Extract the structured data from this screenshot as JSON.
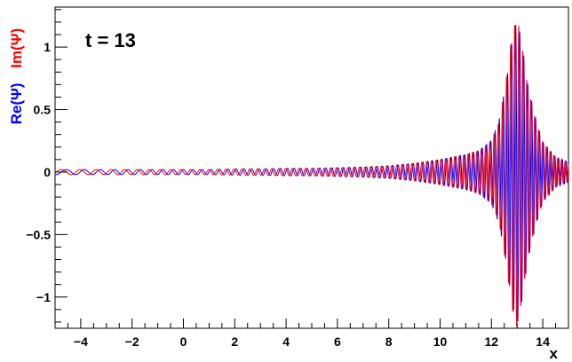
{
  "chart_data": {
    "type": "line",
    "annotation": "t = 13",
    "xlabel": "x",
    "ylabel_parts": [
      {
        "text": "Re(Ψ)",
        "color": "#0000ff"
      },
      {
        "text": "Im(Ψ)",
        "color": "#ff0000"
      }
    ],
    "xlim": [
      -5,
      15
    ],
    "ylim": [
      -1.25,
      1.32
    ],
    "x_ticks": [
      -4,
      -2,
      0,
      2,
      4,
      6,
      8,
      10,
      12,
      14
    ],
    "x_tick_labels": [
      "−4",
      "−2",
      "0",
      "2",
      "4",
      "6",
      "8",
      "10",
      "12",
      "14"
    ],
    "y_ticks": [
      -1,
      -0.5,
      0,
      0.5,
      1
    ],
    "y_tick_labels": [
      "−1",
      "−0.5",
      "0",
      "0.5",
      "1"
    ],
    "grid": false,
    "frame": true,
    "series": [
      {
        "name": "Re(Ψ)",
        "color": "#0000ff",
        "x": [
          -5,
          -4,
          -3,
          -2,
          -1,
          0,
          1,
          2,
          3,
          4,
          5,
          6,
          7,
          8,
          9,
          10,
          10.5,
          11,
          11.5,
          12,
          12.3,
          12.6,
          12.8,
          13.0,
          13.2,
          13.4,
          13.7,
          14,
          14.5,
          15
        ],
        "y": [
          0.02,
          0.02,
          0.02,
          0.02,
          0.02,
          0.02,
          0.02,
          0.025,
          0.025,
          0.03,
          0.03,
          0.035,
          0.04,
          0.05,
          0.07,
          0.1,
          0.12,
          0.14,
          0.17,
          0.25,
          0.42,
          0.75,
          1.05,
          1.22,
          1.02,
          0.72,
          0.45,
          0.24,
          0.12,
          0.08
        ]
      },
      {
        "name": "Im(Ψ)",
        "color": "#ff0000",
        "x": [
          -5,
          -4,
          -3,
          -2,
          -1,
          0,
          1,
          2,
          3,
          4,
          5,
          6,
          7,
          8,
          9,
          10,
          10.5,
          11,
          11.5,
          12,
          12.3,
          12.6,
          12.8,
          13.0,
          13.2,
          13.4,
          13.7,
          14,
          14.5,
          15
        ],
        "y": [
          0.02,
          0.02,
          0.02,
          0.02,
          0.02,
          0.02,
          0.02,
          0.025,
          0.025,
          0.03,
          0.03,
          0.035,
          0.04,
          0.05,
          0.07,
          0.1,
          0.12,
          0.14,
          0.17,
          0.25,
          0.4,
          0.78,
          1.1,
          1.25,
          1.0,
          0.7,
          0.43,
          0.23,
          0.12,
          0.08
        ]
      }
    ]
  }
}
